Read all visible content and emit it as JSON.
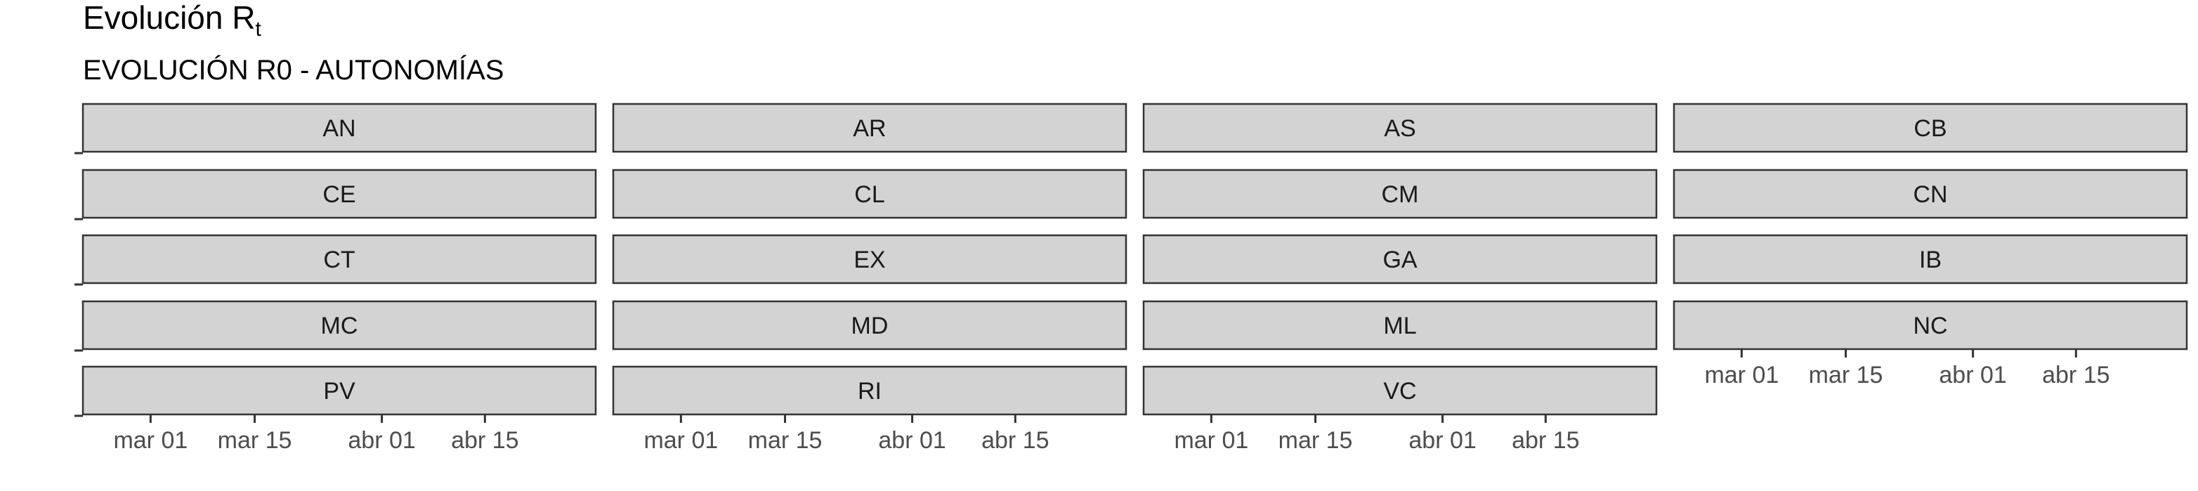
{
  "page": {
    "title": "Evolución R",
    "title_subscript": "t",
    "subtitle": "EVOLUCIÓN R0 - AUTONOMÍAS"
  },
  "chart_data": {
    "type": "line",
    "facet_by": "autonomía",
    "ncol": 4,
    "facets": [
      "AN",
      "AR",
      "AS",
      "CB",
      "CE",
      "CL",
      "CM",
      "CN",
      "CT",
      "EX",
      "GA",
      "IB",
      "MC",
      "MD",
      "ML",
      "NC",
      "PV",
      "RI",
      "VC"
    ],
    "x_axis": {
      "type": "date",
      "ticks": [
        "mar 01",
        "mar 15",
        "abr 01",
        "abr 15"
      ]
    },
    "series": [],
    "grid": false,
    "legend": "none"
  }
}
